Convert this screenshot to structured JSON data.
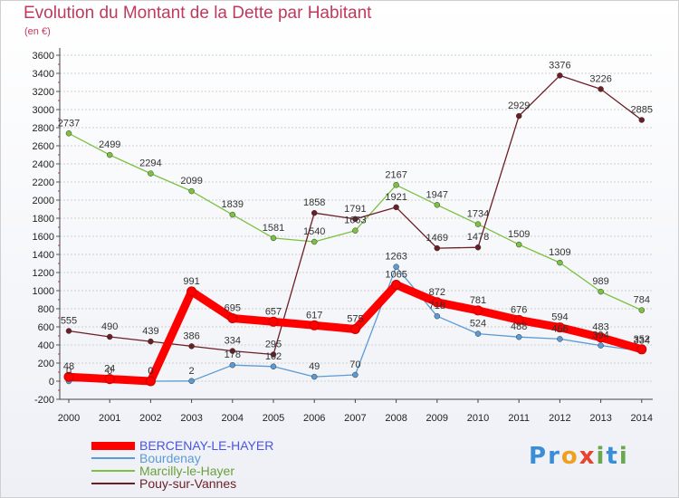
{
  "title": "Evolution du Montant de la Dette par Habitant",
  "subtitle": "(en €)",
  "brand": {
    "letters": [
      "P",
      "r",
      "o",
      "x",
      "i",
      "t",
      "i"
    ]
  },
  "colors": {
    "title": "#c0395e",
    "grid": "#cfcfcf",
    "brand": [
      "#3a8ed8",
      "#3a8ed8",
      "#f0a020",
      "#e8432f",
      "#6aa84f",
      "#3a8ed8",
      "#6aa84f"
    ]
  },
  "chart_data": {
    "type": "line",
    "x": [
      2000,
      2001,
      2002,
      2003,
      2004,
      2005,
      2006,
      2007,
      2008,
      2009,
      2010,
      2011,
      2012,
      2013,
      2014
    ],
    "ylim": [
      -200,
      3600
    ],
    "yticks": [
      -200,
      0,
      200,
      400,
      600,
      800,
      1000,
      1200,
      1400,
      1600,
      1800,
      2000,
      2200,
      2400,
      2600,
      2800,
      3000,
      3200,
      3400,
      3600
    ],
    "grid": "horizontal",
    "legend_position": "bottom-left",
    "series": [
      {
        "name": "Marcilly-le-Hayer",
        "color": "#7cc142",
        "values": [
          2737,
          2499,
          2294,
          2099,
          1839,
          1581,
          1540,
          1663,
          2167,
          1947,
          1734,
          1509,
          1309,
          989,
          784
        ]
      },
      {
        "name": "Pouy-sur-Vannes",
        "color": "#6b1f24",
        "values": [
          555,
          490,
          439,
          386,
          334,
          295,
          1858,
          1791,
          1921,
          1469,
          1478,
          2929,
          3376,
          3226,
          2885
        ]
      },
      {
        "name": "Bourdenay",
        "color": "#5b9bd5",
        "values": [
          0,
          0,
          0,
          2,
          178,
          162,
          49,
          70,
          1263,
          718,
          524,
          488,
          466,
          394,
          334
        ]
      },
      {
        "name": "BERCENAY-LE-HAYER",
        "color": "#ff0000",
        "values": [
          48,
          24,
          0,
          991,
          695,
          657,
          617,
          575,
          1065,
          872,
          781,
          676,
          594,
          483,
          352
        ]
      }
    ],
    "point_labels": {
      "Marcilly-le-Hayer": [
        "2737",
        "2499",
        "2294",
        "2099",
        "1839",
        "1581",
        "1540",
        "1663",
        "2167",
        "1947",
        "1734",
        "1509",
        "1309",
        "989",
        "784"
      ],
      "Pouy-sur-Vannes": [
        "555",
        "490",
        "439",
        "386",
        "334",
        "295",
        "1858",
        "1791",
        "1921",
        "1469",
        "1478",
        "2929",
        "3376",
        "3226",
        "2885"
      ],
      "Bourdenay": [
        "0",
        "0",
        "0",
        "2",
        "178",
        "162",
        "49",
        "70",
        "1263",
        "718",
        "524",
        "488",
        "466",
        "394",
        "334"
      ],
      "BERCENAY-LE-HAYER": [
        "48",
        "24",
        "0",
        "991",
        "695",
        "657",
        "617",
        "575",
        "1065",
        "872",
        "781",
        "676",
        "594",
        "483",
        "352"
      ]
    }
  },
  "legend": [
    {
      "label": "BERCENAY-LE-HAYER",
      "color": "#ff0000",
      "text_color": "#4a55e0",
      "thickness": 9
    },
    {
      "label": "Bourdenay",
      "color": "#5b9bd5",
      "text_color": "#5b9bd5",
      "thickness": 2
    },
    {
      "label": "Marcilly-le-Hayer",
      "color": "#7cc142",
      "text_color": "#6aa03a",
      "thickness": 2
    },
    {
      "label": "Pouy-sur-Vannes",
      "color": "#6b1f24",
      "text_color": "#6b1f24",
      "thickness": 2
    }
  ]
}
